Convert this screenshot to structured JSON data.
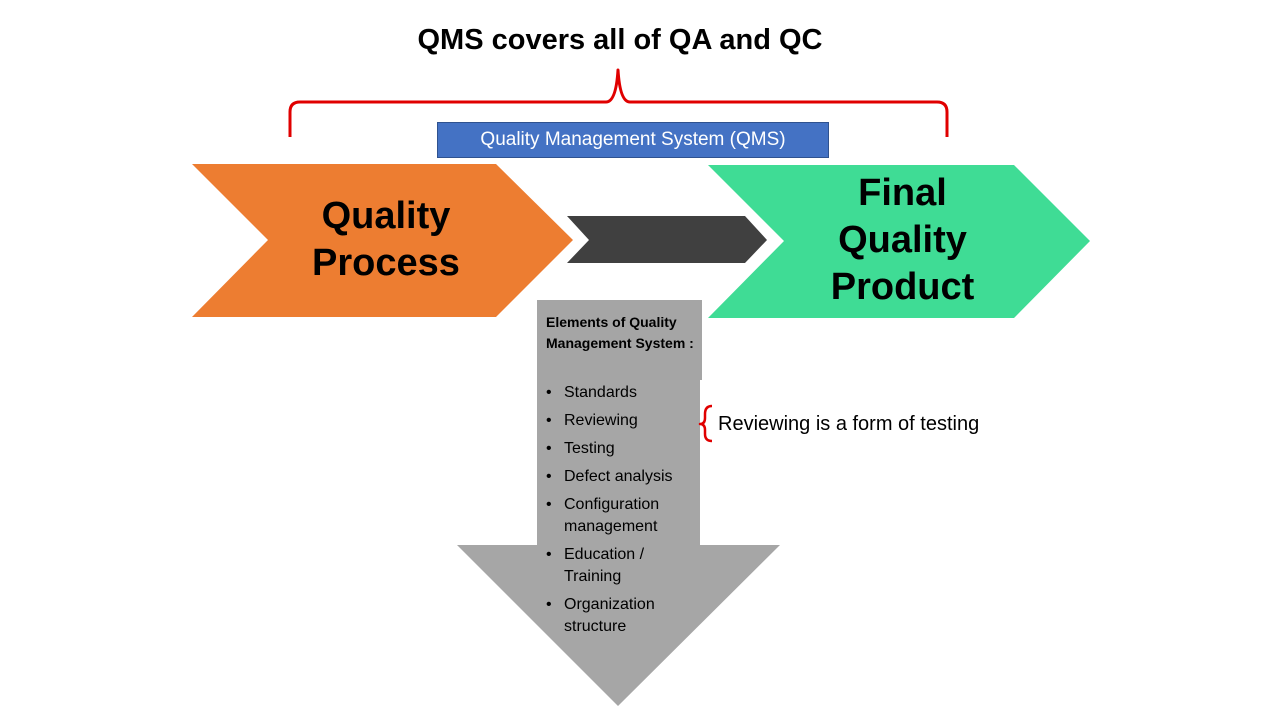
{
  "title": "QMS covers all of QA and QC",
  "qms_box": {
    "label": "Quality Management System (QMS)"
  },
  "quality_process": {
    "lines": [
      "Quality",
      "Process"
    ]
  },
  "final_product": {
    "lines": [
      "Final",
      "Quality",
      "Product"
    ]
  },
  "elements": {
    "heading": "Elements of Quality Management System :",
    "items": [
      "Standards",
      "Reviewing",
      "Testing",
      "Defect analysis",
      "Configuration management",
      "Education / Training",
      "Organization structure"
    ]
  },
  "note": {
    "text": "Reviewing is a form of testing"
  },
  "colors": {
    "process_fill": "#ed7d31",
    "product_fill": "#3fdc95",
    "connector_fill": "#404040",
    "down_arrow_fill": "#a6a6a6",
    "qms_fill": "#4472c4",
    "bracket_stroke": "#e00000"
  }
}
